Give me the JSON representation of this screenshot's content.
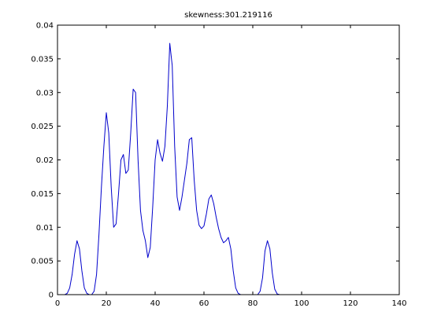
{
  "chart_data": {
    "type": "line",
    "title": "skewness:301.219116",
    "xlabel": "",
    "ylabel": "",
    "xlim": [
      0,
      140
    ],
    "ylim": [
      0,
      0.04
    ],
    "xticks": [
      0,
      20,
      40,
      60,
      80,
      100,
      120,
      140
    ],
    "xtick_labels": [
      "0",
      "20",
      "40",
      "60",
      "80",
      "100",
      "120",
      "140"
    ],
    "yticks": [
      0,
      0.005,
      0.01,
      0.015,
      0.02,
      0.025,
      0.03,
      0.035,
      0.04
    ],
    "ytick_labels": [
      "0",
      "0.005",
      "0.01",
      "0.015",
      "0.02",
      "0.025",
      "0.03",
      "0.035",
      "0.04"
    ],
    "grid": false,
    "line_color": "#0000cc",
    "series": [
      {
        "x": [
          1,
          2,
          3,
          4,
          5,
          6,
          7,
          8,
          9,
          10,
          11,
          12,
          13,
          14,
          15,
          16,
          17,
          18,
          19,
          20,
          21,
          22,
          23,
          24,
          25,
          26,
          27,
          28,
          29,
          30,
          31,
          32,
          33,
          34,
          35,
          36,
          37,
          38,
          39,
          40,
          41,
          42,
          43,
          44,
          45,
          46,
          47,
          48,
          49,
          50,
          51,
          52,
          53,
          54,
          55,
          56,
          57,
          58,
          59,
          60,
          61,
          62,
          63,
          64,
          65,
          66,
          67,
          68,
          69,
          70,
          71,
          72,
          73,
          74,
          75,
          76,
          77,
          78,
          79,
          80,
          81,
          82,
          83,
          84,
          85,
          86,
          87,
          88,
          89,
          90,
          91,
          92,
          93,
          94,
          95,
          96
        ],
        "y": [
          0,
          0,
          0,
          0.0002,
          0.001,
          0.003,
          0.006,
          0.008,
          0.0068,
          0.0035,
          0.001,
          0.0002,
          0,
          0,
          0.0005,
          0.003,
          0.009,
          0.016,
          0.022,
          0.027,
          0.024,
          0.016,
          0.01,
          0.0105,
          0.015,
          0.02,
          0.0208,
          0.018,
          0.0185,
          0.024,
          0.0305,
          0.03,
          0.02,
          0.0125,
          0.0095,
          0.008,
          0.0055,
          0.007,
          0.013,
          0.02,
          0.023,
          0.021,
          0.0198,
          0.022,
          0.028,
          0.0373,
          0.034,
          0.022,
          0.0145,
          0.0125,
          0.0145,
          0.017,
          0.0195,
          0.023,
          0.0233,
          0.017,
          0.0125,
          0.0103,
          0.0098,
          0.0102,
          0.012,
          0.0142,
          0.0148,
          0.0135,
          0.0115,
          0.0098,
          0.0085,
          0.0077,
          0.008,
          0.0085,
          0.0068,
          0.0035,
          0.001,
          0.0002,
          0,
          0,
          0,
          0,
          0,
          0,
          0,
          0,
          0.0005,
          0.0025,
          0.0065,
          0.008,
          0.0068,
          0.0032,
          0.0008,
          0.0001,
          0,
          0,
          0,
          0,
          0,
          0
        ]
      }
    ]
  }
}
